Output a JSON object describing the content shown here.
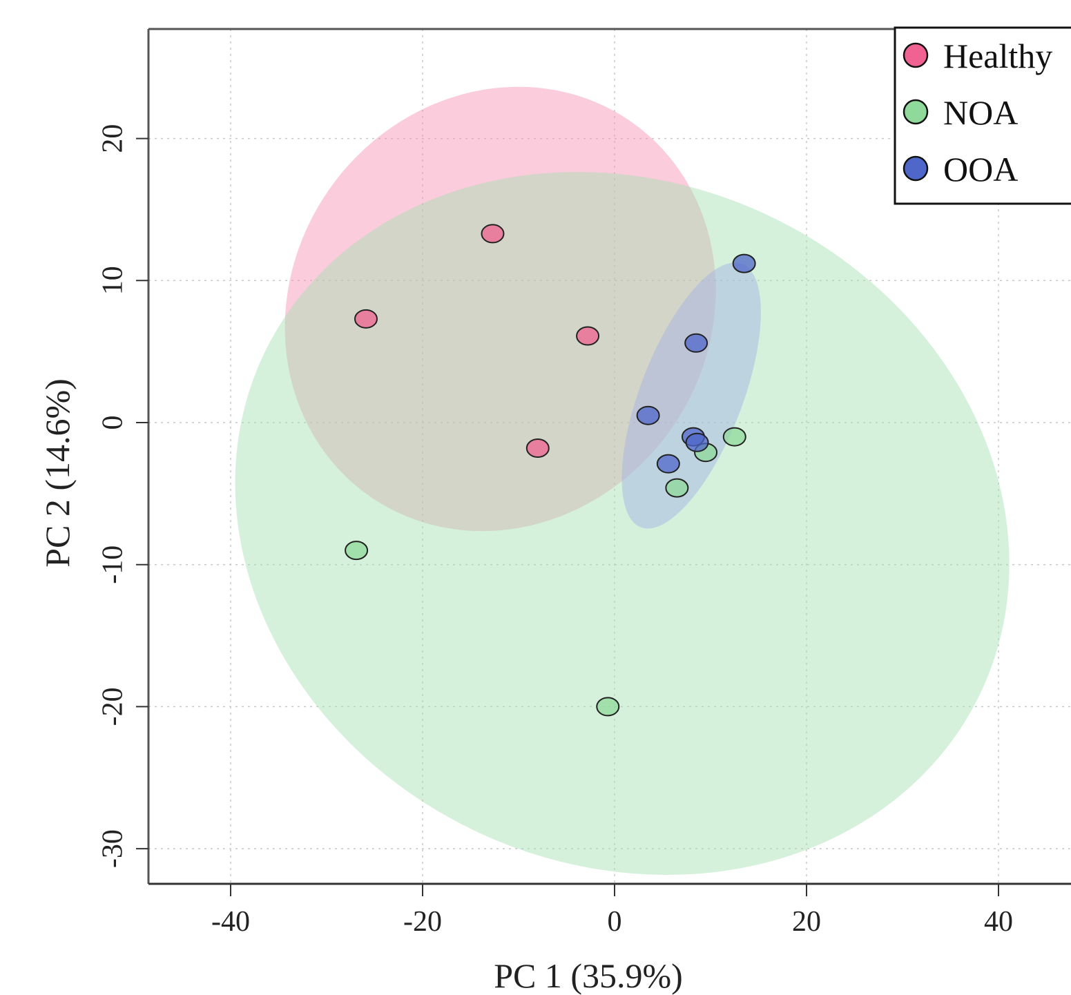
{
  "chart_data": {
    "type": "scatter",
    "title": "",
    "xlabel": "PC 1 (35.9%)",
    "ylabel": "PC 2 (14.6%)",
    "xlim": [
      -48.8,
      48.8
    ],
    "ylim": [
      -32.4,
      27.7
    ],
    "x_ticks": [
      -40,
      -20,
      0,
      20,
      40
    ],
    "y_ticks": [
      -30,
      -20,
      -10,
      0,
      10,
      20
    ],
    "x_tick_labels": [
      "-40",
      "-20",
      "0",
      "20",
      "40"
    ],
    "y_tick_labels": [
      "-30",
      "-20",
      "-10",
      "0",
      "10",
      "20"
    ],
    "grid": true,
    "legend_position": "top-right",
    "series": [
      {
        "name": "Healthy",
        "color": "#f06292",
        "ellipse_color": "#f48fb1",
        "points": [
          {
            "x": -12.7,
            "y": 13.3
          },
          {
            "x": -25.9,
            "y": 7.3
          },
          {
            "x": -2.8,
            "y": 6.1
          },
          {
            "x": -8.0,
            "y": -1.8
          }
        ],
        "ellipse": {
          "cx": -11.9,
          "cy": 8.0,
          "rx": 23.8,
          "ry": 14.7,
          "angle_deg": -55
        }
      },
      {
        "name": "NOA",
        "color": "#8fd99b",
        "ellipse_color": "#a5e0b0",
        "points": [
          {
            "x": 12.5,
            "y": -1.0
          },
          {
            "x": 9.5,
            "y": -2.1
          },
          {
            "x": 6.5,
            "y": -4.6
          },
          {
            "x": -26.9,
            "y": -9.0
          },
          {
            "x": -0.7,
            "y": -20.0
          }
        ],
        "ellipse": {
          "cx": 0.8,
          "cy": -7.1,
          "rx": 41.3,
          "ry": 24.0,
          "angle_deg": 25
        }
      },
      {
        "name": "OOA",
        "color": "#4f67c9",
        "ellipse_color": "#9fb0e6",
        "points": [
          {
            "x": 13.5,
            "y": 11.2
          },
          {
            "x": 8.5,
            "y": 5.6
          },
          {
            "x": 3.5,
            "y": 0.5
          },
          {
            "x": 8.2,
            "y": -1.0
          },
          {
            "x": 8.6,
            "y": -1.4
          },
          {
            "x": 5.6,
            "y": -2.9
          }
        ],
        "ellipse": {
          "cx": 8.0,
          "cy": 1.9,
          "rx": 14.7,
          "ry": 3.6,
          "angle_deg": -69
        }
      }
    ]
  }
}
